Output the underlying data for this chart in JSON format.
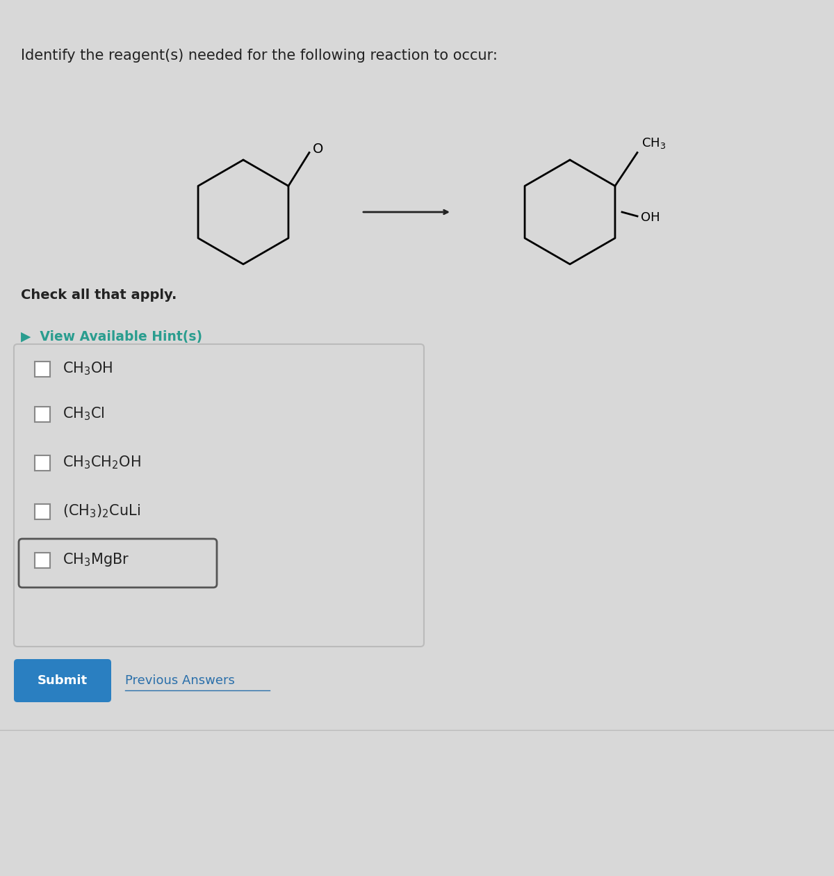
{
  "bg_color": "#d8d8d8",
  "title_text": "Identify the reagent(s) needed for the following reaction to occur:",
  "title_fontsize": 15,
  "title_color": "#222222",
  "check_label": "Check all that apply.",
  "hint_text": "▶  View Available Hint(s)",
  "hint_color": "#2a9d8f",
  "options_formatted": [
    "CH$_3$OH",
    "CH$_3$Cl",
    "CH$_3$CH$_2$OH",
    "(CH$_3$)$_2$CuLi",
    "CH$_3$MgBr"
  ],
  "highlighted_option": 4,
  "submit_text": "Submit",
  "submit_bg": "#2a7fc1",
  "submit_color": "#ffffff",
  "prev_answers_text": "Previous Answers",
  "prev_answers_color": "#2a6faa",
  "box_border_color": "#bbbbbb",
  "checkbox_color": "#888888",
  "option_fontsize": 15,
  "arrow_color": "#222222"
}
